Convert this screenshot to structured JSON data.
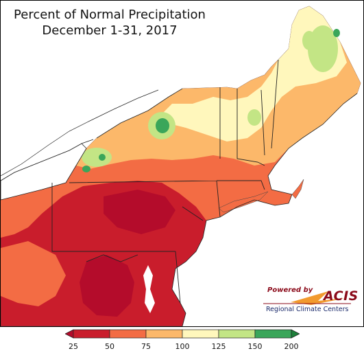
{
  "title": {
    "line1": "Percent of Normal Precipitation",
    "line2": "December 1-31, 2017"
  },
  "credit": {
    "powered_by": "Powered by",
    "brand": "ACIS",
    "subtitle": "Regional Climate Centers"
  },
  "legend": {
    "ticks": [
      "25",
      "50",
      "75",
      "100",
      "125",
      "150",
      "200"
    ],
    "bins": [
      {
        "range": "<25",
        "color": "#b40c2b"
      },
      {
        "range": "25-50",
        "color": "#c91d2c"
      },
      {
        "range": "50-75",
        "color": "#f36c44"
      },
      {
        "range": "75-100",
        "color": "#fcb86a"
      },
      {
        "range": "100-125",
        "color": "#fff7bc"
      },
      {
        "range": "125-150",
        "color": "#c3e585"
      },
      {
        "range": "150-200",
        "color": "#3aa65a"
      },
      {
        "range": ">200",
        "color": "#1d7f3a"
      }
    ]
  },
  "colors": {
    "water": "#ffffff",
    "outside": "#ffffff"
  }
}
